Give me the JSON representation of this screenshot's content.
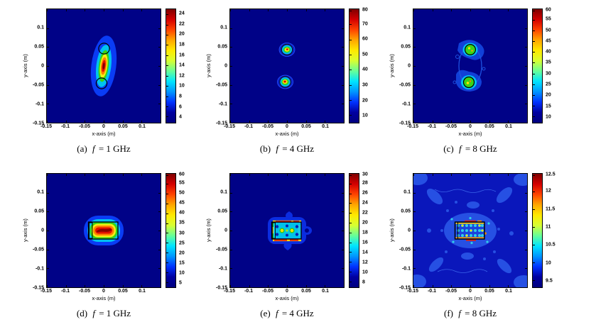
{
  "figure": {
    "type": "multi-panel microwave-imaging contour figure",
    "background": "#ffffff",
    "rows": 2,
    "cols": 3,
    "colormap": "jet",
    "colormap_stops": [
      "#7f0000",
      "#d40000",
      "#ff4400",
      "#ffa600",
      "#ffe900",
      "#d7ff32",
      "#66ff99",
      "#00e4ff",
      "#0096ff",
      "#0032ff",
      "#0000a0",
      "#00007f"
    ],
    "plot_background": "#000287",
    "plot_background_panel_f": "#0a17bb",
    "target_outline_color": "#000000"
  },
  "chart_data": [
    {
      "id": "a",
      "type": "heatmap",
      "caption": "(a) f = 1 GHz",
      "caption_parts": {
        "index": "(a)",
        "variable": "f",
        "value": "= 1 GHz"
      },
      "frequency_ghz": 1,
      "xlabel": "x-axis (m)",
      "ylabel": "y-axis (m)",
      "xlim": [
        -0.15,
        0.15
      ],
      "ylim": [
        -0.15,
        0.15
      ],
      "xticks": [
        -0.15,
        -0.1,
        -0.05,
        0,
        0.05,
        0.1
      ],
      "yticks": [
        0.1,
        0.05,
        0,
        -0.05,
        -0.1,
        -0.15
      ],
      "xtick_labels": [
        "-0.15",
        "-0.1",
        "-0.05",
        "0",
        "0.05",
        "0.1"
      ],
      "ytick_labels": [
        "0.1",
        "0.05",
        "0",
        "-0.05",
        "-0.1",
        "-0.15"
      ],
      "colorbar": {
        "min": 2.8,
        "max": 25,
        "ticks": [
          24,
          22,
          20,
          18,
          16,
          14,
          12,
          10,
          8,
          6,
          4
        ],
        "tick_labels": [
          "24",
          "22",
          "20",
          "18",
          "16",
          "14",
          "12",
          "10",
          "8",
          "6",
          "4"
        ]
      },
      "features": [
        {
          "type": "hotspot",
          "center": [
            0,
            0
          ],
          "extent": [
            0.03,
            0.078
          ],
          "peak": 25,
          "note": "single elongated vertical blob, slightly tilted"
        },
        {
          "type": "target-circle-outline",
          "center": [
            0,
            0.046
          ],
          "radius": 0.014
        },
        {
          "type": "target-circle-outline",
          "center": [
            -0.006,
            -0.046
          ],
          "radius": 0.014
        }
      ]
    },
    {
      "id": "b",
      "type": "heatmap",
      "caption": "(b) f = 4 GHz",
      "caption_parts": {
        "index": "(b)",
        "variable": "f",
        "value": "= 4 GHz"
      },
      "frequency_ghz": 4,
      "xlabel": "x-axis (m)",
      "ylabel": "y-axis (m)",
      "xlim": [
        -0.15,
        0.15
      ],
      "ylim": [
        -0.15,
        0.15
      ],
      "xticks": [
        -0.15,
        -0.1,
        -0.05,
        0,
        0.05,
        0.1
      ],
      "yticks": [
        0.1,
        0.05,
        0,
        -0.05,
        -0.1,
        -0.15
      ],
      "xtick_labels": [
        "-0.15",
        "-0.1",
        "-0.05",
        "0",
        "0.05",
        "0.1"
      ],
      "ytick_labels": [
        "0.1",
        "0.05",
        "0",
        "-0.05",
        "-0.1",
        "-0.15"
      ],
      "colorbar": {
        "min": 5,
        "max": 80,
        "ticks": [
          80,
          70,
          60,
          50,
          40,
          30,
          20,
          10
        ],
        "tick_labels": [
          "80",
          "70",
          "60",
          "50",
          "40",
          "30",
          "20",
          "10"
        ]
      },
      "features": [
        {
          "type": "hotspot",
          "center": [
            0,
            0.044
          ],
          "extent": [
            0.012,
            0.01
          ],
          "peak": 80
        },
        {
          "type": "hotspot",
          "center": [
            -0.005,
            -0.041
          ],
          "extent": [
            0.013,
            0.011
          ],
          "peak": 80
        },
        {
          "type": "target-circle-outline",
          "center": [
            0,
            0.045
          ],
          "radius": 0.014
        },
        {
          "type": "target-circle-outline",
          "center": [
            -0.005,
            -0.042
          ],
          "radius": 0.014
        }
      ]
    },
    {
      "id": "c",
      "type": "heatmap",
      "caption": "(c) f = 8 GHz",
      "caption_parts": {
        "index": "(c)",
        "variable": "f",
        "value": "= 8 GHz"
      },
      "frequency_ghz": 8,
      "xlabel": "x-axis (m)",
      "ylabel": "y-axis (m)",
      "xlim": [
        -0.15,
        0.15
      ],
      "ylim": [
        -0.15,
        0.15
      ],
      "xticks": [
        -0.15,
        -0.1,
        -0.05,
        0,
        0.05,
        0.1
      ],
      "yticks": [
        0.1,
        0.05,
        0,
        -0.05,
        -0.1,
        -0.15
      ],
      "xtick_labels": [
        "-0.15",
        "-0.1",
        "-0.05",
        "0",
        "0.05",
        "0.1"
      ],
      "ytick_labels": [
        "0.1",
        "0.05",
        "0",
        "-0.05",
        "-0.1",
        "-0.15"
      ],
      "colorbar": {
        "min": 7,
        "max": 60,
        "ticks": [
          60,
          55,
          50,
          45,
          40,
          35,
          30,
          25,
          20,
          15,
          10
        ],
        "tick_labels": [
          "60",
          "55",
          "50",
          "45",
          "40",
          "35",
          "30",
          "25",
          "20",
          "15",
          "10"
        ]
      },
      "features": [
        {
          "type": "hotspot",
          "center": [
            0,
            0.046
          ],
          "extent": [
            0.014,
            0.013
          ],
          "peak": 45,
          "note": "green disc inside circle outline, noisy halo"
        },
        {
          "type": "hotspot",
          "center": [
            -0.004,
            -0.043
          ],
          "extent": [
            0.015,
            0.014
          ],
          "peak": 45
        },
        {
          "type": "target-circle-outline",
          "center": [
            0,
            0.046
          ],
          "radius": 0.0135
        },
        {
          "type": "target-circle-outline",
          "center": [
            -0.004,
            -0.043
          ],
          "radius": 0.014
        },
        {
          "type": "contour-ring",
          "center": [
            0,
            0
          ],
          "note": "irregular low-level contour joining the two spots"
        }
      ]
    },
    {
      "id": "d",
      "type": "heatmap",
      "caption": "(d) f = 1 GHz",
      "caption_parts": {
        "index": "(d)",
        "variable": "f",
        "value": "= 1 GHz"
      },
      "frequency_ghz": 1,
      "xlabel": "x-axis (m)",
      "ylabel": "y-axis (m)",
      "xlim": [
        -0.15,
        0.15
      ],
      "ylim": [
        -0.15,
        0.15
      ],
      "xticks": [
        -0.15,
        -0.1,
        -0.05,
        0,
        0.05,
        0.1
      ],
      "yticks": [
        0.1,
        0.05,
        0,
        -0.05,
        -0.1,
        -0.15
      ],
      "xtick_labels": [
        "-0.15",
        "-0.1",
        "-0.05",
        "0",
        "0.05",
        "0.1"
      ],
      "ytick_labels": [
        "0.1",
        "0.05",
        "0",
        "-0.05",
        "-0.1",
        "-0.15"
      ],
      "colorbar": {
        "min": 2.5,
        "max": 60,
        "ticks": [
          60,
          55,
          50,
          45,
          40,
          35,
          30,
          25,
          20,
          15,
          10,
          5
        ],
        "tick_labels": [
          "60",
          "55",
          "50",
          "45",
          "40",
          "35",
          "30",
          "25",
          "20",
          "15",
          "10",
          "5"
        ]
      },
      "features": [
        {
          "type": "hotspot",
          "center": [
            0,
            0
          ],
          "extent": [
            0.052,
            0.038
          ],
          "peak": 60,
          "note": "horizontal stadium-shaped blob with red core"
        },
        {
          "type": "target-rect-outline",
          "x_range": [
            -0.04,
            0.037
          ],
          "y_range": [
            -0.022,
            0.022
          ]
        }
      ]
    },
    {
      "id": "e",
      "type": "heatmap",
      "caption": "(e) f = 4 GHz",
      "caption_parts": {
        "index": "(e)",
        "variable": "f",
        "value": "= 4 GHz"
      },
      "frequency_ghz": 4,
      "xlabel": "x-axis (m)",
      "ylabel": "y-axis (m)",
      "xlim": [
        -0.15,
        0.15
      ],
      "ylim": [
        -0.15,
        0.15
      ],
      "xticks": [
        -0.15,
        -0.1,
        -0.05,
        0,
        0.05,
        0.1
      ],
      "yticks": [
        0.1,
        0.05,
        0,
        -0.05,
        -0.1,
        -0.15
      ],
      "xtick_labels": [
        "-0.15",
        "-0.1",
        "-0.05",
        "0",
        "0.05",
        "0.1"
      ],
      "ytick_labels": [
        "0.1",
        "0.05",
        "0",
        "-0.05",
        "-0.1",
        "-0.15"
      ],
      "colorbar": {
        "min": 6.8,
        "max": 30,
        "ticks": [
          30,
          28,
          26,
          24,
          22,
          20,
          18,
          16,
          14,
          12,
          10,
          8
        ],
        "tick_labels": [
          "30",
          "28",
          "26",
          "24",
          "22",
          "20",
          "18",
          "16",
          "14",
          "12",
          "10",
          "8"
        ]
      },
      "features": [
        {
          "type": "target-rect-outline",
          "x_range": [
            -0.04,
            0.037
          ],
          "y_range": [
            -0.022,
            0.022
          ]
        },
        {
          "type": "hot-edges",
          "note": "red/yellow strips along top and bottom rectangle edges",
          "peak": 30
        },
        {
          "type": "interior",
          "note": "cyan interior with navy and yellow dot pattern"
        }
      ]
    },
    {
      "id": "f",
      "type": "heatmap",
      "caption": "(f) f = 8 GHz",
      "caption_parts": {
        "index": "(f)",
        "variable": "f",
        "value": "= 8 GHz"
      },
      "frequency_ghz": 8,
      "xlabel": "x-axis (m)",
      "ylabel": "y-axis (m)",
      "xlim": [
        -0.15,
        0.15
      ],
      "ylim": [
        -0.15,
        0.15
      ],
      "xticks": [
        -0.15,
        -0.1,
        -0.05,
        0,
        0.05,
        0.1
      ],
      "yticks": [
        0.1,
        0.05,
        0,
        -0.05,
        -0.1,
        -0.15
      ],
      "xtick_labels": [
        "-0.15",
        "-0.1",
        "-0.05",
        "0",
        "0.05",
        "0.1"
      ],
      "ytick_labels": [
        "0.1",
        "0.05",
        "0",
        "-0.05",
        "-0.1",
        "-0.15"
      ],
      "colorbar": {
        "min": 9.3,
        "max": 12.5,
        "ticks": [
          12.5,
          12,
          11.5,
          11,
          10.5,
          10,
          9.5
        ],
        "tick_labels": [
          "12.5",
          "12",
          "11.5",
          "11",
          "10.5",
          "10",
          "9.5"
        ]
      },
      "features": [
        {
          "type": "target-rect-outline",
          "x_range": [
            -0.04,
            0.037
          ],
          "y_range": [
            -0.022,
            0.022
          ]
        },
        {
          "type": "dot-grid",
          "note": "grid of cyan/yellow dots inside rectangle",
          "peak": 12.5
        },
        {
          "type": "noise",
          "note": "speckled lighter-blue background forming X-shaped pattern",
          "level_range": [
            9.5,
            10.5
          ]
        }
      ]
    }
  ]
}
